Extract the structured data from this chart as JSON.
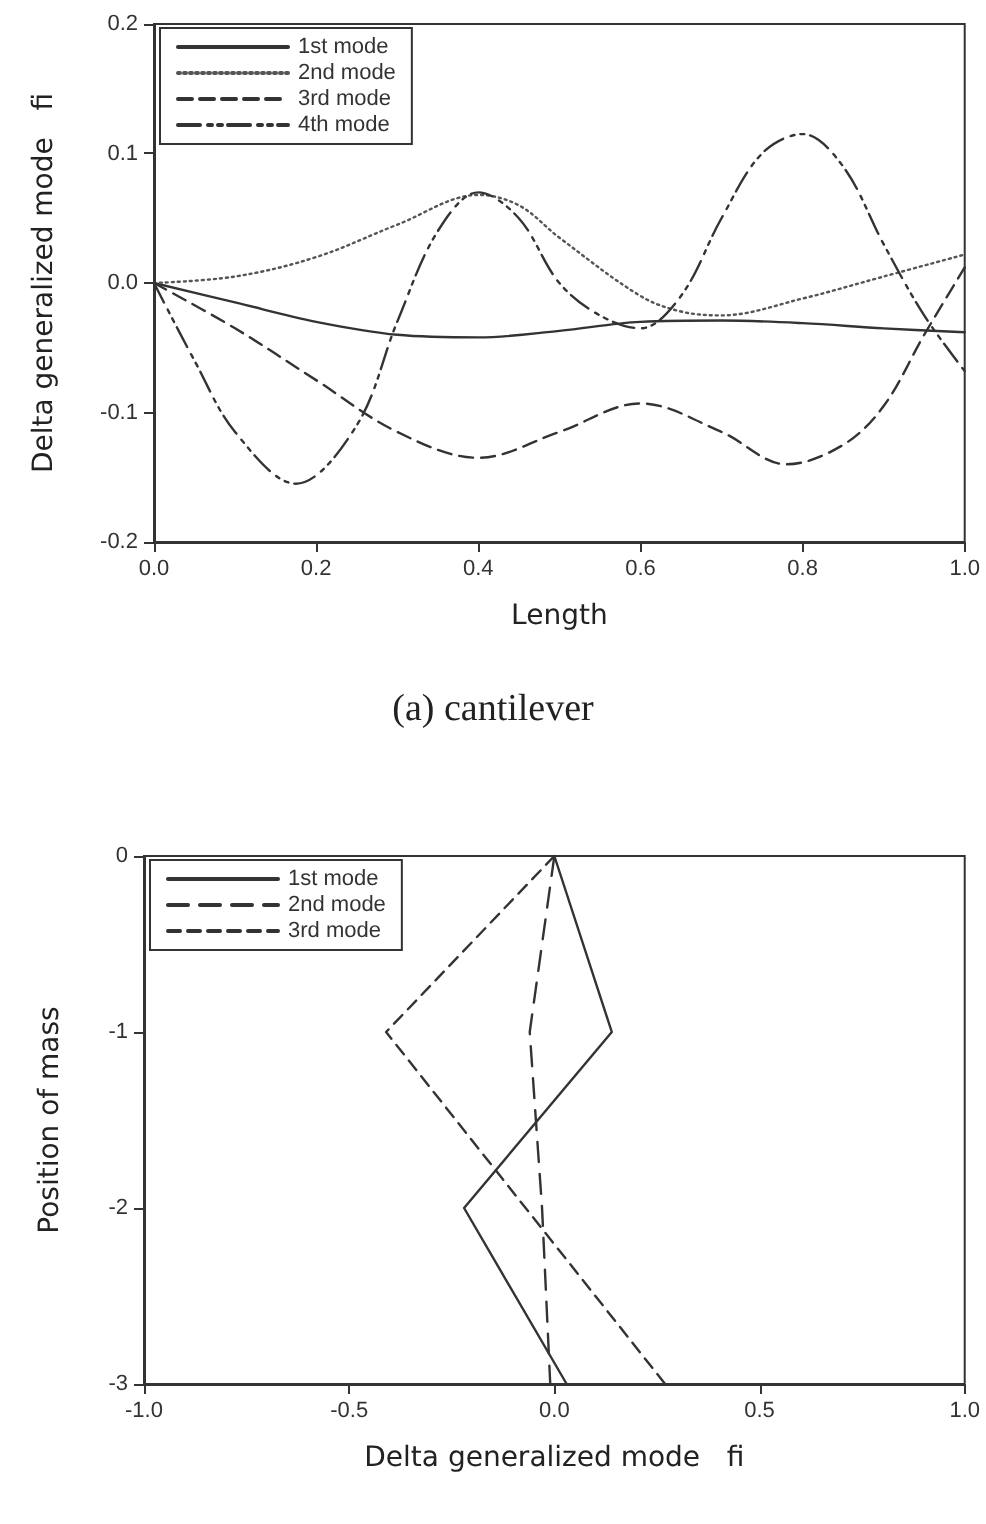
{
  "chart_data": [
    {
      "type": "line",
      "xlabel": "Length",
      "ylabel": "Delta generalized mode   fi",
      "annotations": [
        "(a)  cantilever"
      ],
      "xlim": [
        0,
        1
      ],
      "xticks": [
        {
          "value": 0,
          "label": "0.0"
        },
        0.2,
        0.4,
        0.6,
        0.8,
        {
          "value": 1,
          "label": "1.0"
        }
      ],
      "ylim": [
        -0.2,
        0.2
      ],
      "yticks": [
        -0.2,
        -0.1,
        {
          "value": 0,
          "label": "0.0"
        },
        0.1,
        0.2
      ],
      "grid": false,
      "legend": "top left",
      "marker": "none",
      "series": [
        {
          "name": "1st mode",
          "color": "#333333",
          "line_style": "solid",
          "x": [
            0,
            0.1,
            0.2,
            0.3,
            0.4,
            0.5,
            0.6,
            0.7,
            0.8,
            0.9,
            1.0
          ],
          "values": [
            0,
            -0.015,
            -0.03,
            -0.04,
            -0.042,
            -0.037,
            -0.03,
            -0.029,
            -0.031,
            -0.035,
            -0.038
          ]
        },
        {
          "name": "2nd mode",
          "color": "#555555",
          "line_style": "dotted",
          "x": [
            0,
            0.1,
            0.2,
            0.3,
            0.4,
            0.45,
            0.5,
            0.6,
            0.65,
            0.7,
            0.8,
            0.9,
            1.0
          ],
          "values": [
            0,
            0.005,
            0.02,
            0.045,
            0.068,
            0.06,
            0.035,
            -0.01,
            -0.022,
            -0.025,
            -0.012,
            0.005,
            0.022
          ]
        },
        {
          "name": "3rd mode",
          "color": "#333333",
          "line_style": "dashed",
          "x": [
            0,
            0.1,
            0.2,
            0.3,
            0.4,
            0.5,
            0.6,
            0.7,
            0.78,
            0.85,
            0.9,
            0.95,
            1.0
          ],
          "values": [
            0,
            -0.035,
            -0.075,
            -0.115,
            -0.135,
            -0.115,
            -0.093,
            -0.115,
            -0.14,
            -0.125,
            -0.095,
            -0.04,
            0.012
          ]
        },
        {
          "name": "4th mode",
          "color": "#333333",
          "line_style": "dashed",
          "x": [
            0,
            0.05,
            0.1,
            0.175,
            0.25,
            0.3,
            0.35,
            0.4,
            0.45,
            0.5,
            0.55,
            0.6,
            0.65,
            0.7,
            0.75,
            0.8,
            0.85,
            0.9,
            0.95,
            1.0
          ],
          "values": [
            0,
            -0.06,
            -0.115,
            -0.155,
            -0.11,
            -0.03,
            0.04,
            0.07,
            0.05,
            0.0,
            -0.025,
            -0.035,
            -0.01,
            0.05,
            0.1,
            0.115,
            0.09,
            0.03,
            -0.025,
            -0.068
          ]
        }
      ]
    },
    {
      "type": "line",
      "xlabel": "Delta generalized mode   fi",
      "ylabel": "Position of mass",
      "xlim": [
        -1,
        1
      ],
      "xticks": [
        {
          "value": -1,
          "label": "-1.0"
        },
        -0.5,
        {
          "value": 0,
          "label": "0.0"
        },
        0.5,
        {
          "value": 1,
          "label": "1.0"
        }
      ],
      "ylim": [
        -3,
        0
      ],
      "yticks": [
        -3,
        -2,
        -1,
        0
      ],
      "grid": false,
      "legend": "top left",
      "marker": "none",
      "series": [
        {
          "name": "1st mode",
          "color": "#333333",
          "line_style": "solid",
          "x": [
            0,
            0.14,
            -0.22,
            0.03
          ],
          "values": [
            0,
            -1,
            -2,
            -3
          ]
        },
        {
          "name": "2nd mode",
          "color": "#333333",
          "line_style": "dashed",
          "x": [
            0,
            -0.06,
            -0.03,
            -0.01
          ],
          "values": [
            0,
            -1,
            -2,
            -3
          ]
        },
        {
          "name": "3rd mode",
          "color": "#333333",
          "line_style": "dashed",
          "x": [
            0,
            -0.41,
            -0.07,
            0.27
          ],
          "values": [
            0,
            -1,
            -2,
            -3
          ]
        }
      ]
    }
  ]
}
